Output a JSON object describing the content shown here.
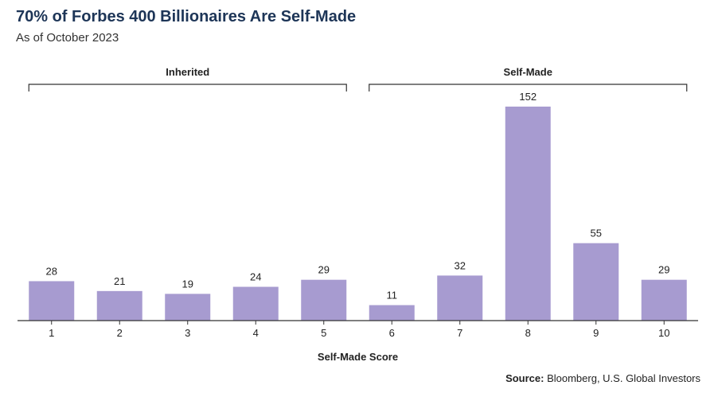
{
  "title": "70% of Forbes 400 Billionaires Are Self-Made",
  "subtitle": "As of October 2023",
  "source": {
    "label": "Source:",
    "text": " Bloomberg, U.S. Global Investors"
  },
  "chart_data": {
    "type": "bar",
    "categories": [
      "1",
      "2",
      "3",
      "4",
      "5",
      "6",
      "7",
      "8",
      "9",
      "10"
    ],
    "values": [
      28,
      21,
      19,
      24,
      29,
      11,
      32,
      152,
      55,
      29
    ],
    "xlabel": "Self-Made Score",
    "ylabel": "",
    "ylim": [
      0,
      152
    ],
    "bar_color": "#a79bd0",
    "groups": [
      {
        "label": "Inherited",
        "from": "1",
        "to": "5"
      },
      {
        "label": "Self-Made",
        "from": "6",
        "to": "10"
      }
    ],
    "data_labels": true,
    "grid": false
  }
}
